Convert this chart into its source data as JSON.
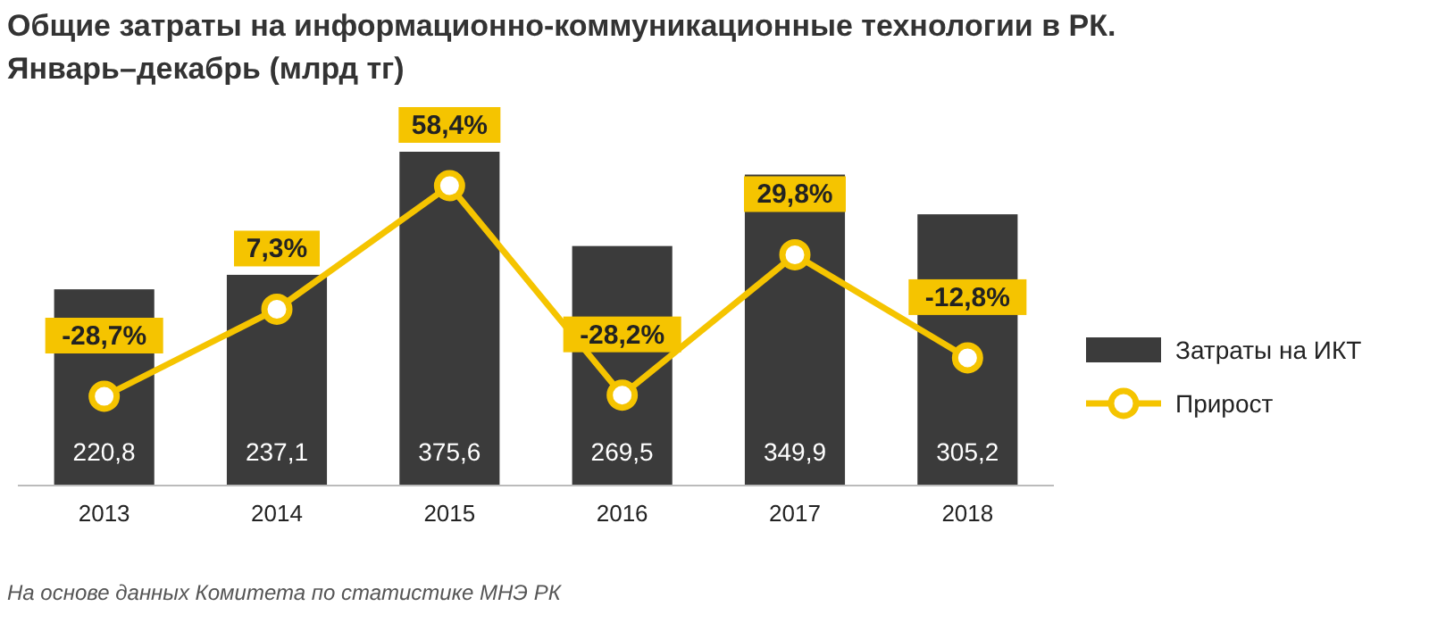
{
  "chart_data": {
    "type": "bar",
    "title": "Общие затраты на информационно-коммуникационные технологии в РК.",
    "subtitle": "Январь–декабрь (млрд тг)",
    "categories": [
      "2013",
      "2014",
      "2015",
      "2016",
      "2017",
      "2018"
    ],
    "series": [
      {
        "name": "Затраты на ИКТ",
        "color": "#3b3b3b",
        "values": [
          220.8,
          237.1,
          375.6,
          269.5,
          349.9,
          305.2
        ],
        "value_labels": [
          "220,8",
          "237,1",
          "375,6",
          "269,5",
          "349,9",
          "305,2"
        ]
      },
      {
        "name": "Прирост",
        "type": "line",
        "axis": "y2",
        "color": "#f5c400",
        "values": [
          -28.7,
          7.3,
          58.4,
          -28.2,
          29.8,
          -12.8
        ],
        "value_labels": [
          "-28,7%",
          "7,3%",
          "58,4%",
          "-28,2%",
          "29,8%",
          "-12,8%"
        ]
      }
    ],
    "data_labels": true,
    "marker": "circle",
    "legend": "right",
    "annotations": [
      "На основе данных Комитета по статистике МНЭ РК"
    ]
  }
}
